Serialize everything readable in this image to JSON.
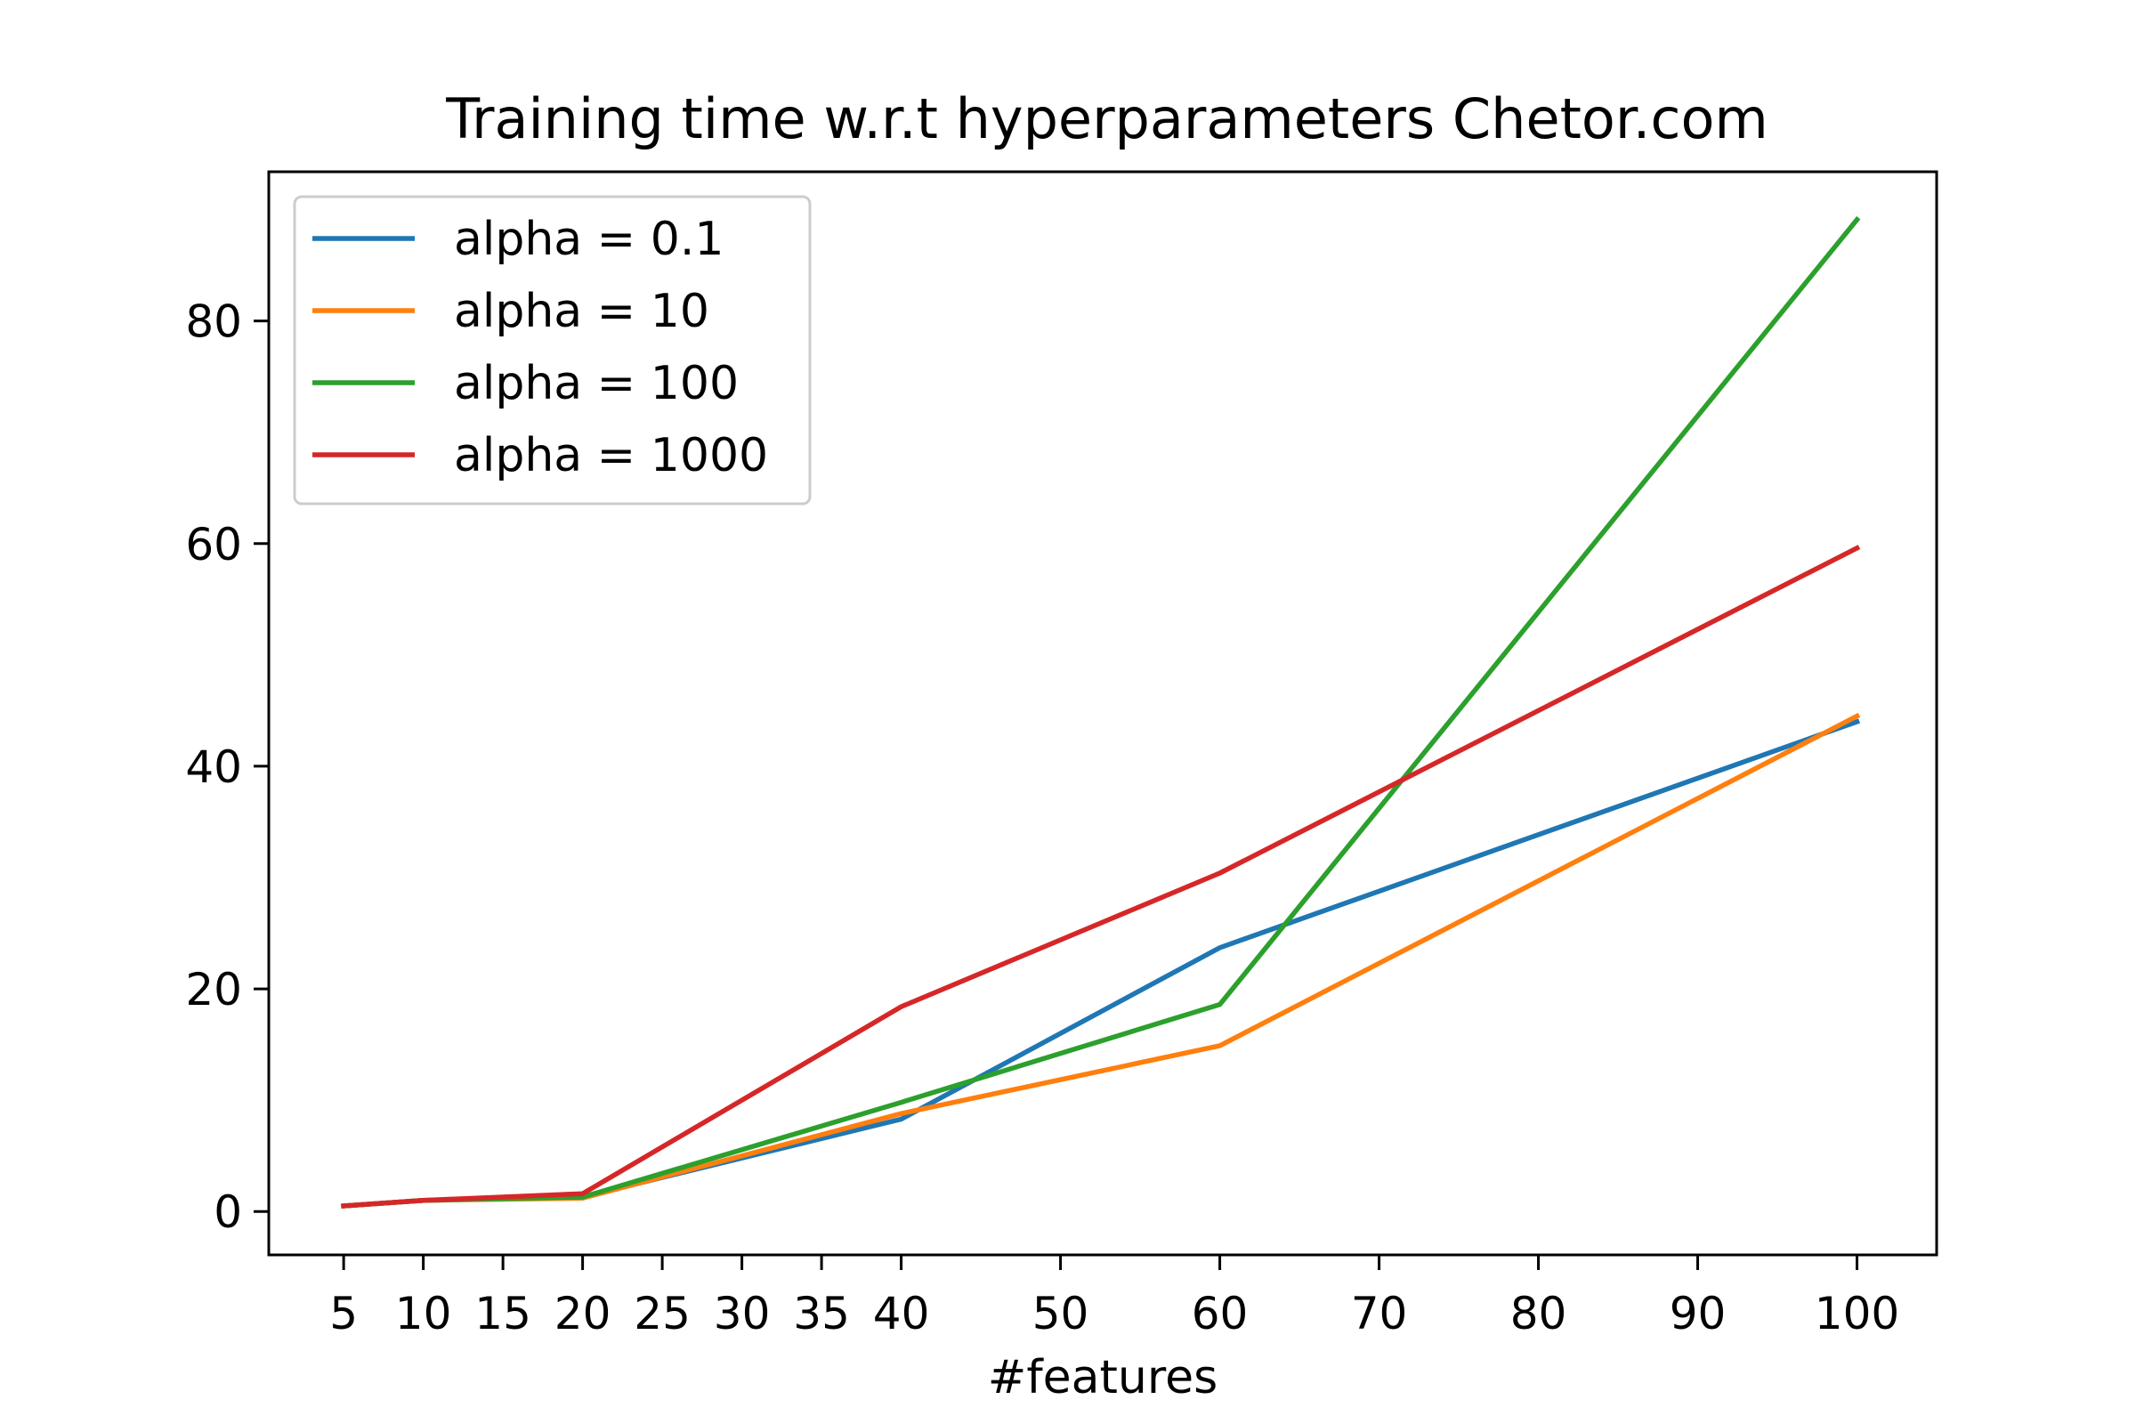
{
  "chart_data": {
    "type": "line",
    "title": "Training time w.r.t hyperparameters Chetor.com",
    "xlabel": "#features",
    "ylabel": "",
    "x": [
      5,
      10,
      20,
      40,
      60,
      100
    ],
    "x_ticks": [
      5,
      10,
      15,
      20,
      25,
      30,
      35,
      40,
      50,
      60,
      70,
      80,
      90,
      100
    ],
    "y_ticks": [
      0,
      20,
      40,
      60,
      80
    ],
    "xlim": [
      0.3,
      105
    ],
    "ylim": [
      -3.9,
      93.4
    ],
    "grid": false,
    "legend_position": "upper left",
    "series": [
      {
        "name": "alpha = 0.1",
        "color": "#1f77b4",
        "values": [
          0.5,
          1.0,
          1.3,
          8.3,
          23.7,
          44.0
        ]
      },
      {
        "name": "alpha = 10",
        "color": "#ff7f0e",
        "values": [
          0.5,
          1.0,
          1.2,
          8.8,
          14.9,
          44.5
        ]
      },
      {
        "name": "alpha = 100",
        "color": "#2ca02c",
        "values": [
          0.5,
          1.0,
          1.3,
          9.8,
          18.6,
          89.1
        ]
      },
      {
        "name": "alpha = 1000",
        "color": "#d62728",
        "values": [
          0.5,
          1.0,
          1.6,
          18.4,
          30.4,
          59.6
        ]
      }
    ]
  }
}
